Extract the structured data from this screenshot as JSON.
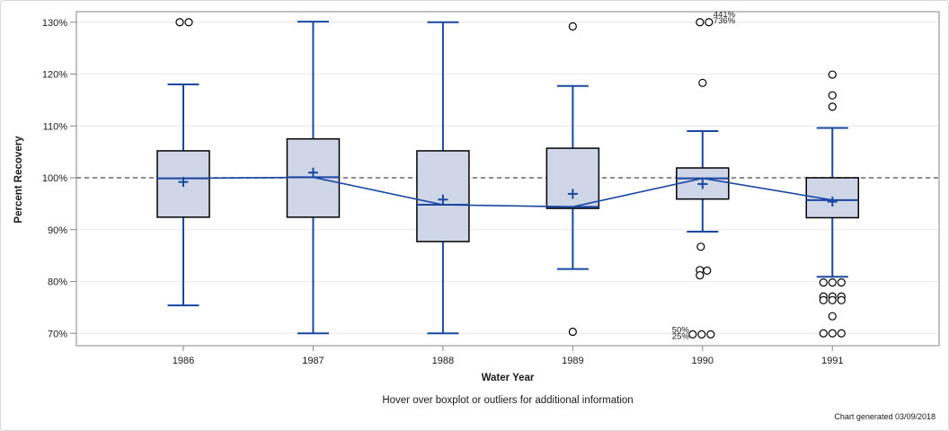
{
  "chart_data": {
    "type": "boxplot",
    "title": "",
    "xlabel": "Water Year",
    "ylabel": "Percent Recovery",
    "footnote": "Hover over boxplot or outliers for additional information",
    "generated_note": "Chart generated 03/09/2018",
    "reference_line_value": 100,
    "y_tick_values": [
      70,
      80,
      90,
      100,
      110,
      120,
      130
    ],
    "y_tick_labels": [
      "70%",
      "80%",
      "90%",
      "100%",
      "110%",
      "120%",
      "130%"
    ],
    "ylim": [
      67.4,
      132.1
    ],
    "grid": "horizontal",
    "categories": [
      "1986",
      "1987",
      "1988",
      "1989",
      "1990",
      "1991"
    ],
    "connect": "median",
    "boxes": [
      {
        "label": "1986",
        "whisker_low": 75.4,
        "q1": 92.4,
        "median": 99.9,
        "mean": 99.2,
        "q3": 105.2,
        "whisker_high": 118.0,
        "outliers": [
          {
            "v": 130.0,
            "dx": -4
          },
          {
            "v": 130.0,
            "dx": 6
          }
        ],
        "labels": []
      },
      {
        "label": "1987",
        "whisker_low": 70.0,
        "q1": 92.4,
        "median": 100.1,
        "mean": 101.0,
        "q3": 107.5,
        "whisker_high": 130.1,
        "outliers": [],
        "labels": []
      },
      {
        "label": "1988",
        "whisker_low": 70.0,
        "q1": 87.7,
        "median": 94.8,
        "mean": 95.8,
        "q3": 105.2,
        "whisker_high": 130.0,
        "outliers": [],
        "labels": []
      },
      {
        "label": "1989",
        "whisker_low": 82.4,
        "q1": 94.1,
        "median": 94.4,
        "mean": 96.9,
        "q3": 105.7,
        "whisker_high": 117.7,
        "outliers": [
          {
            "v": 129.2,
            "dx": 0
          },
          {
            "v": 70.3,
            "dx": 0
          }
        ],
        "labels": []
      },
      {
        "label": "1990",
        "whisker_low": 89.6,
        "q1": 95.9,
        "median": 99.9,
        "mean": 98.8,
        "q3": 101.9,
        "whisker_high": 109.0,
        "outliers": [
          {
            "v": 130.0,
            "dx": -3
          },
          {
            "v": 130.0,
            "dx": 7
          },
          {
            "v": 118.3,
            "dx": 0
          },
          {
            "v": 86.7,
            "dx": -2
          },
          {
            "v": 82.2,
            "dx": -3
          },
          {
            "v": 81.2,
            "dx": -3
          },
          {
            "v": 82.1,
            "dx": 5
          },
          {
            "v": 69.8,
            "dx": -11
          },
          {
            "v": 69.8,
            "dx": -1
          },
          {
            "v": 69.8,
            "dx": 9
          }
        ],
        "labels": [
          {
            "text": "441%",
            "v": 131.6,
            "dx": 12,
            "anchor": "start"
          },
          {
            "text": "736%",
            "v": 130.4,
            "dx": 12,
            "anchor": "start"
          },
          {
            "text": "50%",
            "v": 70.7,
            "dx": -15,
            "anchor": "end"
          },
          {
            "text": "25%",
            "v": 69.5,
            "dx": -15,
            "anchor": "end"
          }
        ]
      },
      {
        "label": "1991",
        "whisker_low": 80.9,
        "q1": 92.3,
        "median": 95.7,
        "mean": 95.4,
        "q3": 100.0,
        "whisker_high": 109.6,
        "outliers": [
          {
            "v": 119.9,
            "dx": 0
          },
          {
            "v": 115.9,
            "dx": 0
          },
          {
            "v": 113.7,
            "dx": 0
          },
          {
            "v": 79.8,
            "dx": -10
          },
          {
            "v": 79.8,
            "dx": 0
          },
          {
            "v": 79.8,
            "dx": 10
          },
          {
            "v": 77.1,
            "dx": -10
          },
          {
            "v": 77.1,
            "dx": 0
          },
          {
            "v": 77.1,
            "dx": 10
          },
          {
            "v": 76.4,
            "dx": -10
          },
          {
            "v": 76.4,
            "dx": 0
          },
          {
            "v": 76.4,
            "dx": 10
          },
          {
            "v": 73.3,
            "dx": 0
          },
          {
            "v": 70.0,
            "dx": -10
          },
          {
            "v": 70.0,
            "dx": 0
          },
          {
            "v": 70.0,
            "dx": 10
          }
        ],
        "labels": []
      }
    ],
    "colors": {
      "box_fill": "#CFD6E8",
      "box_border": "#000000",
      "line_blue": "#1A47A0",
      "reference_line": "#8F8F8F",
      "gridline": "#ECECEC",
      "frame": "#868686",
      "outlier_stroke": "#000000",
      "text": "#1A1A1A"
    }
  }
}
